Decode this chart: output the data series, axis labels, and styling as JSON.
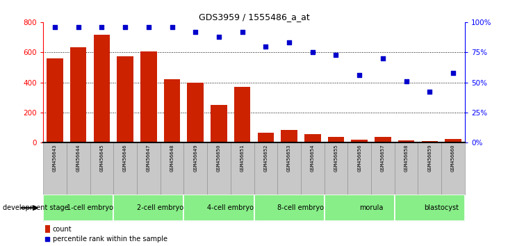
{
  "title": "GDS3959 / 1555486_a_at",
  "samples": [
    "GSM456643",
    "GSM456644",
    "GSM456645",
    "GSM456646",
    "GSM456647",
    "GSM456648",
    "GSM456649",
    "GSM456650",
    "GSM456651",
    "GSM456652",
    "GSM456653",
    "GSM456654",
    "GSM456655",
    "GSM456656",
    "GSM456657",
    "GSM456658",
    "GSM456659",
    "GSM456660"
  ],
  "counts": [
    560,
    635,
    715,
    575,
    605,
    420,
    400,
    250,
    370,
    65,
    85,
    55,
    40,
    20,
    40,
    15,
    10,
    25
  ],
  "percentiles": [
    96,
    96,
    96,
    96,
    96,
    96,
    92,
    88,
    92,
    80,
    83,
    75,
    73,
    56,
    70,
    51,
    42,
    58
  ],
  "stages": [
    {
      "label": "1-cell embryo",
      "start": 0,
      "end": 3
    },
    {
      "label": "2-cell embryo",
      "start": 3,
      "end": 6
    },
    {
      "label": "4-cell embryo",
      "start": 6,
      "end": 9
    },
    {
      "label": "8-cell embryo",
      "start": 9,
      "end": 12
    },
    {
      "label": "morula",
      "start": 12,
      "end": 15
    },
    {
      "label": "blastocyst",
      "start": 15,
      "end": 18
    }
  ],
  "bar_color": "#CC2200",
  "dot_color": "#0000CC",
  "stage_color": "#88EE88",
  "tick_bg_color": "#C8C8C8",
  "ylim_left": [
    0,
    800
  ],
  "ylim_right": [
    0,
    100
  ],
  "yticks_left": [
    0,
    200,
    400,
    600,
    800
  ],
  "yticks_right": [
    0,
    25,
    50,
    75,
    100
  ],
  "yticklabels_right": [
    "0%",
    "25%",
    "50%",
    "75%",
    "100%"
  ],
  "legend_count_label": "count",
  "legend_pct_label": "percentile rank within the sample",
  "dev_stage_label": "development stage"
}
